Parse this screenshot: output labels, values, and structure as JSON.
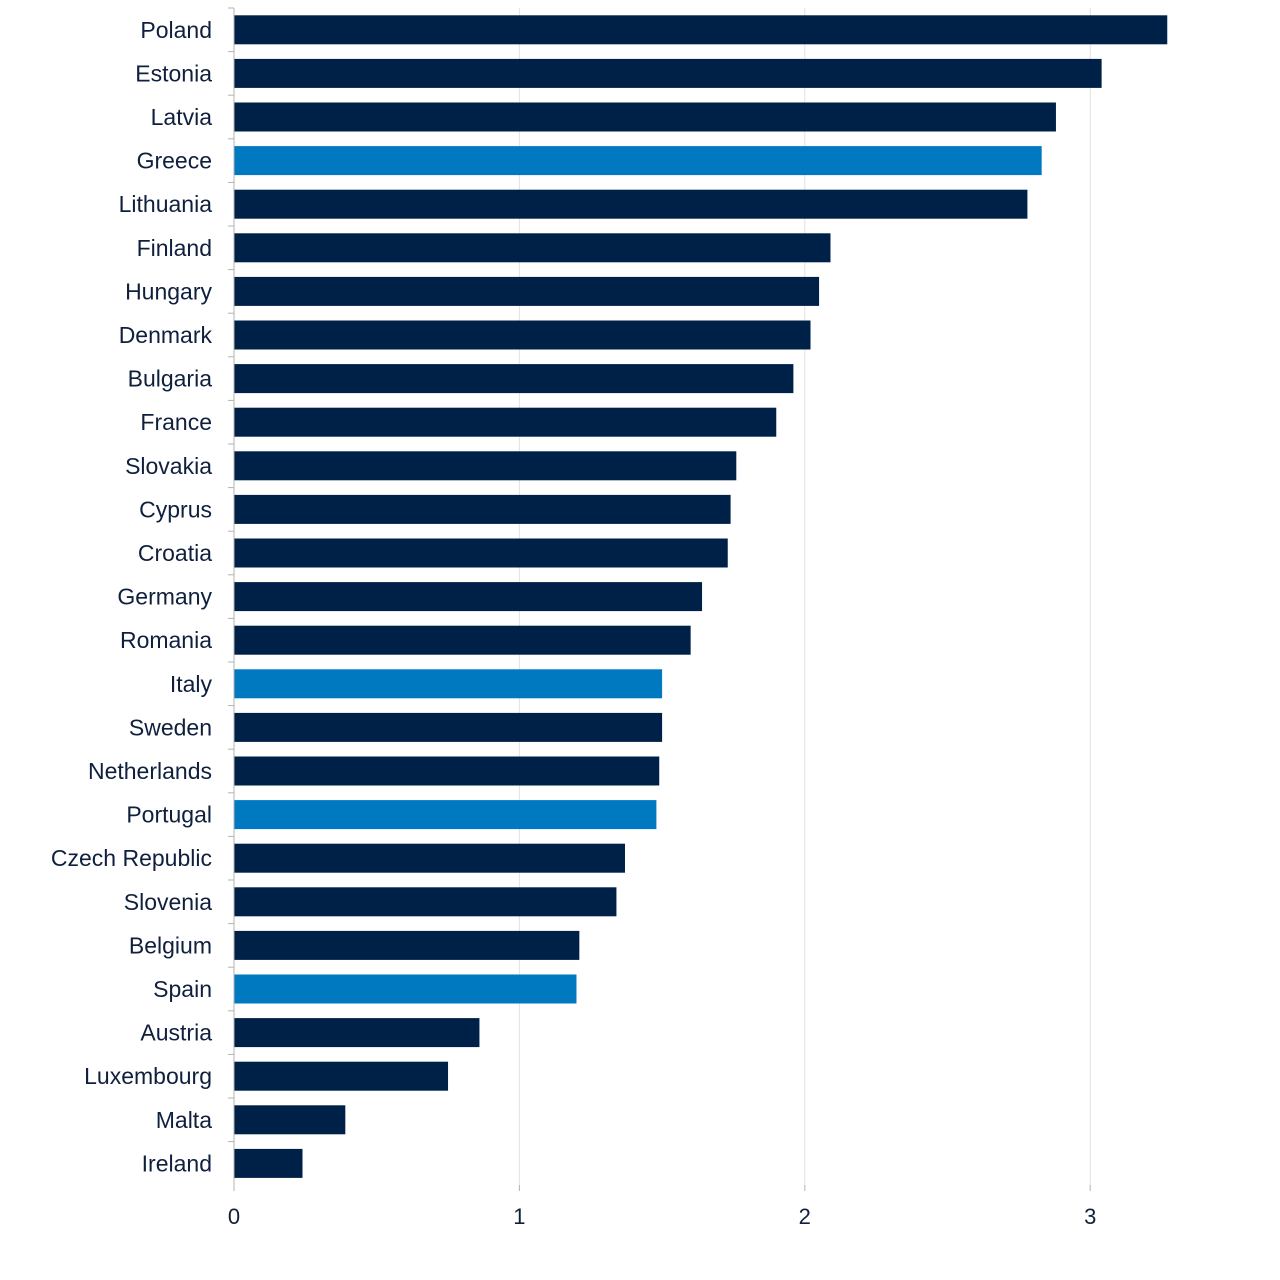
{
  "chart_data": {
    "type": "bar",
    "orientation": "horizontal",
    "title": "",
    "xlabel": "",
    "ylabel": "",
    "xlim": [
      0,
      3.5
    ],
    "x_ticks": [
      0,
      1,
      2,
      3
    ],
    "grid": true,
    "legend": "none",
    "colors": {
      "default": "#002147",
      "highlight": "#0079c1"
    },
    "categories": [
      "Poland",
      "Estonia",
      "Latvia",
      "Greece",
      "Lithuania",
      "Finland",
      "Hungary",
      "Denmark",
      "Bulgaria",
      "France",
      "Slovakia",
      "Cyprus",
      "Croatia",
      "Germany",
      "Romania",
      "Italy",
      "Sweden",
      "Netherlands",
      "Portugal",
      "Czech Republic",
      "Slovenia",
      "Belgium",
      "Spain",
      "Austria",
      "Luxembourg",
      "Malta",
      "Ireland"
    ],
    "values": [
      3.27,
      3.04,
      2.88,
      2.83,
      2.78,
      2.09,
      2.05,
      2.02,
      1.96,
      1.9,
      1.76,
      1.74,
      1.73,
      1.64,
      1.6,
      1.5,
      1.5,
      1.49,
      1.48,
      1.37,
      1.34,
      1.21,
      1.2,
      0.86,
      0.75,
      0.39,
      0.24
    ],
    "highlighted": [
      "Greece",
      "Italy",
      "Portugal",
      "Spain"
    ]
  }
}
